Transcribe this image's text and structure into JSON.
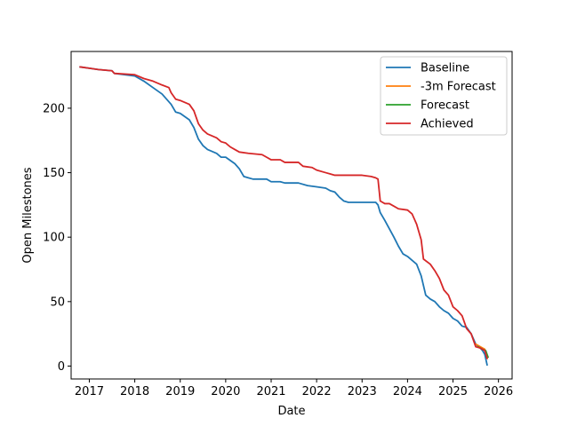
{
  "chart_data": {
    "type": "line",
    "title": "",
    "xlabel": "Date",
    "ylabel": "Open Milestones",
    "xlim": [
      2016.6,
      2026.3
    ],
    "ylim": [
      -10,
      244
    ],
    "x_ticks": [
      2017,
      2018,
      2019,
      2020,
      2021,
      2022,
      2023,
      2024,
      2025,
      2026
    ],
    "x_tick_labels": [
      "2017",
      "2018",
      "2019",
      "2020",
      "2021",
      "2022",
      "2023",
      "2024",
      "2025",
      "2026"
    ],
    "y_ticks": [
      0,
      50,
      100,
      150,
      200
    ],
    "y_tick_labels": [
      "0",
      "50",
      "100",
      "150",
      "200"
    ],
    "grid": false,
    "legend_position": "top-right",
    "series": [
      {
        "name": "Baseline",
        "color": "#1f77b4",
        "points": [
          [
            2016.8,
            232
          ],
          [
            2017.0,
            231
          ],
          [
            2017.2,
            230
          ],
          [
            2017.5,
            229
          ],
          [
            2017.55,
            227
          ],
          [
            2018.0,
            225
          ],
          [
            2018.2,
            221
          ],
          [
            2018.4,
            216
          ],
          [
            2018.6,
            211
          ],
          [
            2018.8,
            203
          ],
          [
            2018.9,
            197
          ],
          [
            2019.0,
            196
          ],
          [
            2019.2,
            191
          ],
          [
            2019.3,
            185
          ],
          [
            2019.4,
            176
          ],
          [
            2019.5,
            171
          ],
          [
            2019.6,
            168
          ],
          [
            2019.8,
            165
          ],
          [
            2019.9,
            162
          ],
          [
            2020.0,
            162
          ],
          [
            2020.2,
            157
          ],
          [
            2020.3,
            153
          ],
          [
            2020.4,
            147
          ],
          [
            2020.5,
            146
          ],
          [
            2020.6,
            145
          ],
          [
            2020.9,
            145
          ],
          [
            2021.0,
            143
          ],
          [
            2021.2,
            143
          ],
          [
            2021.3,
            142
          ],
          [
            2021.6,
            142
          ],
          [
            2021.8,
            140
          ],
          [
            2022.0,
            139
          ],
          [
            2022.2,
            138
          ],
          [
            2022.3,
            136
          ],
          [
            2022.4,
            135
          ],
          [
            2022.5,
            131
          ],
          [
            2022.6,
            128
          ],
          [
            2022.7,
            127
          ],
          [
            2023.0,
            127
          ],
          [
            2023.3,
            127
          ],
          [
            2023.35,
            125
          ],
          [
            2023.4,
            119
          ],
          [
            2023.5,
            113
          ],
          [
            2023.7,
            100
          ],
          [
            2023.8,
            93
          ],
          [
            2023.9,
            87
          ],
          [
            2024.0,
            85
          ],
          [
            2024.2,
            79
          ],
          [
            2024.3,
            70
          ],
          [
            2024.4,
            55
          ],
          [
            2024.5,
            52
          ],
          [
            2024.6,
            50
          ],
          [
            2024.7,
            46
          ],
          [
            2024.8,
            43
          ],
          [
            2024.9,
            41
          ],
          [
            2025.0,
            37
          ],
          [
            2025.1,
            35
          ],
          [
            2025.2,
            31
          ],
          [
            2025.3,
            30
          ],
          [
            2025.4,
            25
          ],
          [
            2025.5,
            17
          ],
          [
            2025.6,
            14
          ],
          [
            2025.65,
            12
          ],
          [
            2025.7,
            9
          ],
          [
            2025.75,
            1
          ]
        ]
      },
      {
        "name": "-3m Forecast",
        "color": "#ff7f0e",
        "points": [
          [
            2025.5,
            17
          ],
          [
            2025.6,
            15
          ],
          [
            2025.7,
            13
          ],
          [
            2025.75,
            6
          ]
        ]
      },
      {
        "name": "Forecast",
        "color": "#2ca02c",
        "points": [
          [
            2025.55,
            15
          ],
          [
            2025.65,
            13
          ],
          [
            2025.72,
            12
          ],
          [
            2025.77,
            7
          ]
        ]
      },
      {
        "name": "Achieved",
        "color": "#d62728",
        "points": [
          [
            2016.8,
            232
          ],
          [
            2017.0,
            231
          ],
          [
            2017.2,
            230
          ],
          [
            2017.5,
            229
          ],
          [
            2017.55,
            227
          ],
          [
            2018.0,
            226
          ],
          [
            2018.2,
            223
          ],
          [
            2018.4,
            221
          ],
          [
            2018.6,
            218
          ],
          [
            2018.75,
            216
          ],
          [
            2018.8,
            212
          ],
          [
            2018.9,
            207
          ],
          [
            2019.0,
            206
          ],
          [
            2019.2,
            203
          ],
          [
            2019.3,
            198
          ],
          [
            2019.4,
            188
          ],
          [
            2019.5,
            183
          ],
          [
            2019.6,
            180
          ],
          [
            2019.8,
            177
          ],
          [
            2019.9,
            174
          ],
          [
            2020.0,
            173
          ],
          [
            2020.1,
            170
          ],
          [
            2020.2,
            168
          ],
          [
            2020.3,
            166
          ],
          [
            2020.5,
            165
          ],
          [
            2020.8,
            164
          ],
          [
            2020.9,
            162
          ],
          [
            2021.0,
            160
          ],
          [
            2021.2,
            160
          ],
          [
            2021.3,
            158
          ],
          [
            2021.6,
            158
          ],
          [
            2021.7,
            155
          ],
          [
            2021.9,
            154
          ],
          [
            2022.0,
            152
          ],
          [
            2022.2,
            150
          ],
          [
            2022.3,
            149
          ],
          [
            2022.4,
            148
          ],
          [
            2022.6,
            148
          ],
          [
            2023.0,
            148
          ],
          [
            2023.2,
            147
          ],
          [
            2023.3,
            146
          ],
          [
            2023.35,
            145
          ],
          [
            2023.4,
            128
          ],
          [
            2023.5,
            126
          ],
          [
            2023.6,
            126
          ],
          [
            2023.7,
            124
          ],
          [
            2023.8,
            122
          ],
          [
            2024.0,
            121
          ],
          [
            2024.1,
            118
          ],
          [
            2024.2,
            110
          ],
          [
            2024.3,
            98
          ],
          [
            2024.35,
            83
          ],
          [
            2024.5,
            79
          ],
          [
            2024.6,
            74
          ],
          [
            2024.7,
            68
          ],
          [
            2024.8,
            59
          ],
          [
            2024.9,
            55
          ],
          [
            2025.0,
            46
          ],
          [
            2025.1,
            43
          ],
          [
            2025.2,
            39
          ],
          [
            2025.3,
            29
          ],
          [
            2025.4,
            25
          ],
          [
            2025.5,
            15
          ],
          [
            2025.6,
            14
          ],
          [
            2025.7,
            12
          ],
          [
            2025.75,
            6
          ]
        ]
      }
    ]
  }
}
